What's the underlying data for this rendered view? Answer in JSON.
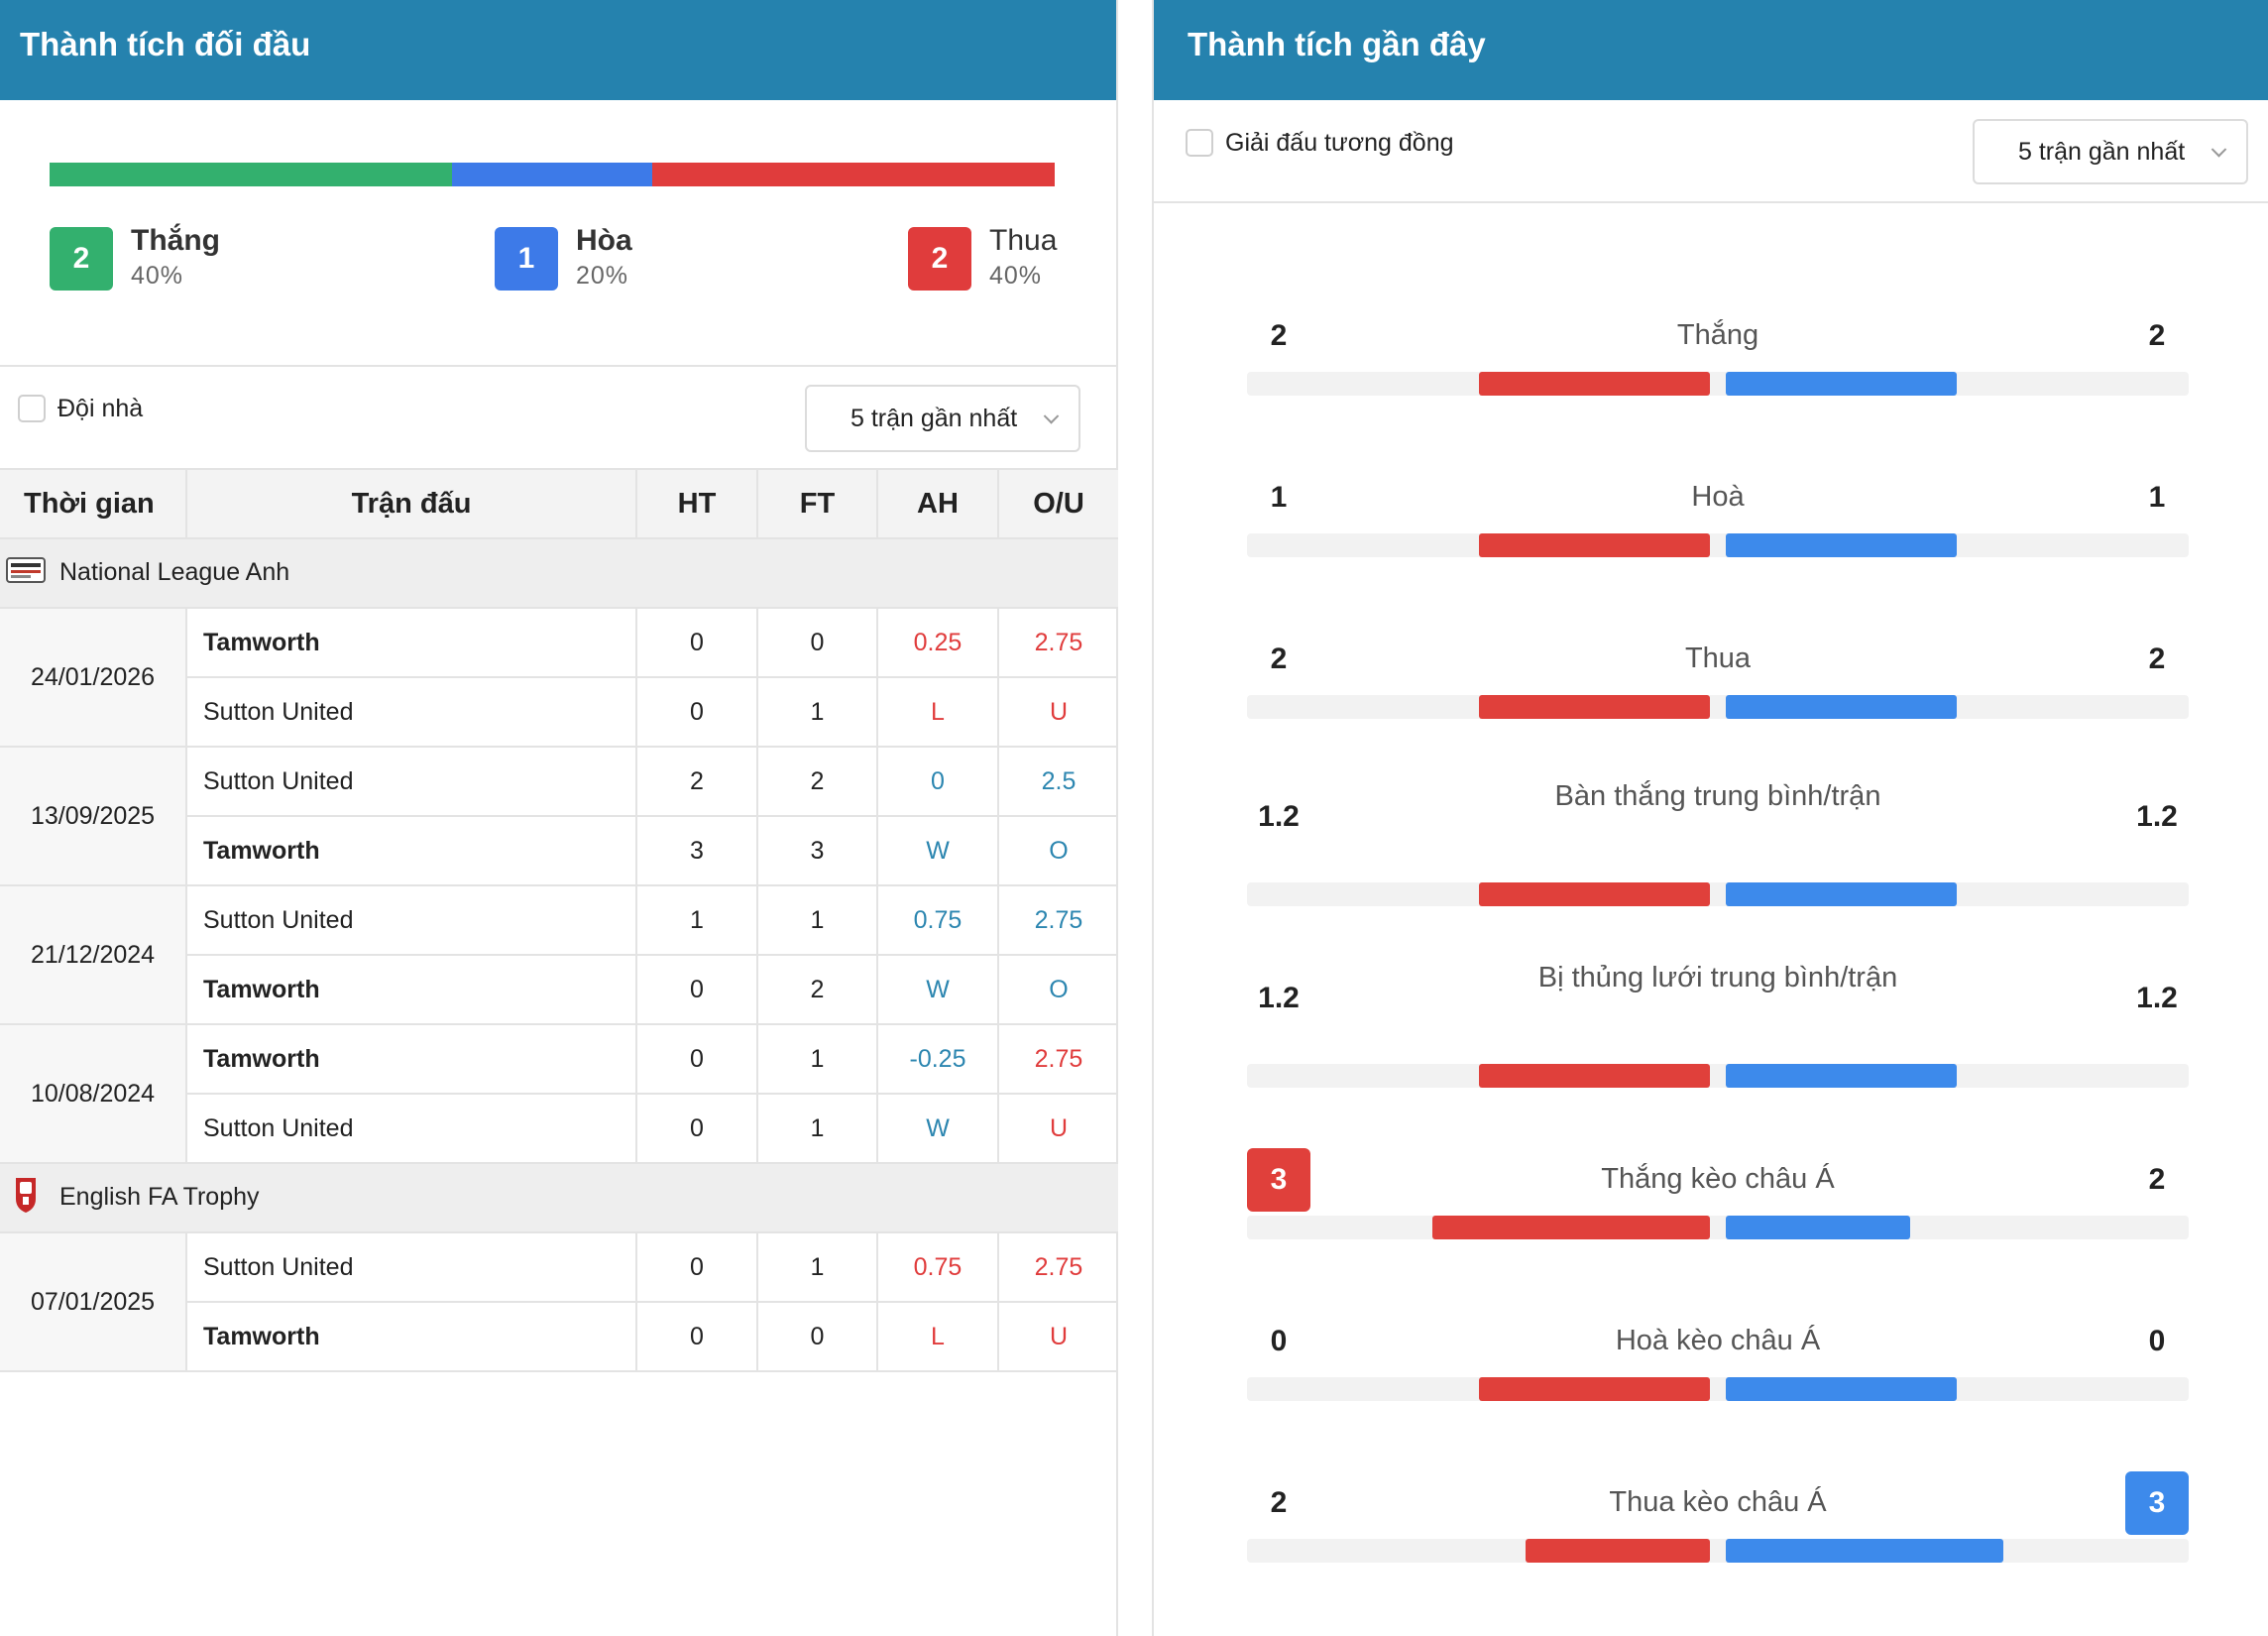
{
  "left": {
    "title": "Thành tích đối đầu",
    "summary": {
      "win": {
        "count": "2",
        "label": "Thắng",
        "pct": "40%",
        "fraction": 0.4,
        "color": "#33b06e"
      },
      "draw": {
        "count": "1",
        "label": "Hòa",
        "pct": "20%",
        "fraction": 0.2,
        "color": "#3d7ae8"
      },
      "loss": {
        "count": "2",
        "label": "Thua",
        "pct": "40%",
        "fraction": 0.4,
        "color": "#e03c3c"
      }
    },
    "home_filter_label": "Đội nhà",
    "dropdown_label": "5 trận gần nhất",
    "table": {
      "headers": [
        "Thời gian",
        "Trận đấu",
        "HT",
        "FT",
        "AH",
        "O/U"
      ],
      "groups": [
        {
          "league": "National League Anh",
          "matches": [
            {
              "date": "24/01/2026",
              "rows": [
                {
                  "team": "Tamworth",
                  "bold": true,
                  "ht": "0",
                  "ft": "0",
                  "ah": "0.25",
                  "ah_color": "red",
                  "ou": "2.75",
                  "ou_color": "red"
                },
                {
                  "team": "Sutton United",
                  "bold": false,
                  "ht": "0",
                  "ft": "1",
                  "ah": "L",
                  "ah_color": "red",
                  "ou": "U",
                  "ou_color": "red"
                }
              ]
            },
            {
              "date": "13/09/2025",
              "rows": [
                {
                  "team": "Sutton United",
                  "bold": false,
                  "ht": "2",
                  "ft": "2",
                  "ah": "0",
                  "ah_color": "blue",
                  "ou": "2.5",
                  "ou_color": "blue"
                },
                {
                  "team": "Tamworth",
                  "bold": true,
                  "ht": "3",
                  "ft": "3",
                  "ah": "W",
                  "ah_color": "blue",
                  "ou": "O",
                  "ou_color": "blue"
                }
              ]
            },
            {
              "date": "21/12/2024",
              "rows": [
                {
                  "team": "Sutton United",
                  "bold": false,
                  "ht": "1",
                  "ft": "1",
                  "ah": "0.75",
                  "ah_color": "blue",
                  "ou": "2.75",
                  "ou_color": "blue"
                },
                {
                  "team": "Tamworth",
                  "bold": true,
                  "ht": "0",
                  "ft": "2",
                  "ah": "W",
                  "ah_color": "blue",
                  "ou": "O",
                  "ou_color": "blue"
                }
              ]
            },
            {
              "date": "10/08/2024",
              "rows": [
                {
                  "team": "Tamworth",
                  "bold": true,
                  "ht": "0",
                  "ft": "1",
                  "ah": "-0.25",
                  "ah_color": "blue",
                  "ou": "2.75",
                  "ou_color": "red"
                },
                {
                  "team": "Sutton United",
                  "bold": false,
                  "ht": "0",
                  "ft": "1",
                  "ah": "W",
                  "ah_color": "blue",
                  "ou": "U",
                  "ou_color": "red"
                }
              ]
            }
          ]
        },
        {
          "league": "English FA Trophy",
          "matches": [
            {
              "date": "07/01/2025",
              "rows": [
                {
                  "team": "Sutton United",
                  "bold": false,
                  "ht": "0",
                  "ft": "1",
                  "ah": "0.75",
                  "ah_color": "red",
                  "ou": "2.75",
                  "ou_color": "red"
                },
                {
                  "team": "Tamworth",
                  "bold": true,
                  "ht": "0",
                  "ft": "0",
                  "ah": "L",
                  "ah_color": "red",
                  "ou": "U",
                  "ou_color": "red"
                }
              ]
            }
          ]
        }
      ]
    }
  },
  "right": {
    "title": "Thành tích gần đây",
    "filter_label": "Giải đấu tương đồng",
    "dropdown_label": "5 trận gần nhất",
    "stats": [
      {
        "label": "Thắng",
        "home": "2",
        "away": "2",
        "home_frac": 0.5,
        "away_frac": 0.5,
        "highlight": ""
      },
      {
        "label": "Hoà",
        "home": "1",
        "away": "1",
        "home_frac": 0.5,
        "away_frac": 0.5,
        "highlight": ""
      },
      {
        "label": "Thua",
        "home": "2",
        "away": "2",
        "home_frac": 0.5,
        "away_frac": 0.5,
        "highlight": ""
      },
      {
        "label": "Bàn thắng trung bình/trận",
        "home": "1.2",
        "away": "1.2",
        "home_frac": 0.5,
        "away_frac": 0.5,
        "highlight": ""
      },
      {
        "label": "Bị thủng lưới trung bình/trận",
        "home": "1.2",
        "away": "1.2",
        "home_frac": 0.5,
        "away_frac": 0.5,
        "highlight": ""
      },
      {
        "label": "Thắng kèo châu Á",
        "home": "3",
        "away": "2",
        "home_frac": 0.6,
        "away_frac": 0.4,
        "highlight": "home"
      },
      {
        "label": "Hoà kèo châu Á",
        "home": "0",
        "away": "0",
        "home_frac": 0.5,
        "away_frac": 0.5,
        "highlight": ""
      },
      {
        "label": "Thua kèo châu Á",
        "home": "2",
        "away": "3",
        "home_frac": 0.4,
        "away_frac": 0.6,
        "highlight": "away"
      }
    ]
  }
}
